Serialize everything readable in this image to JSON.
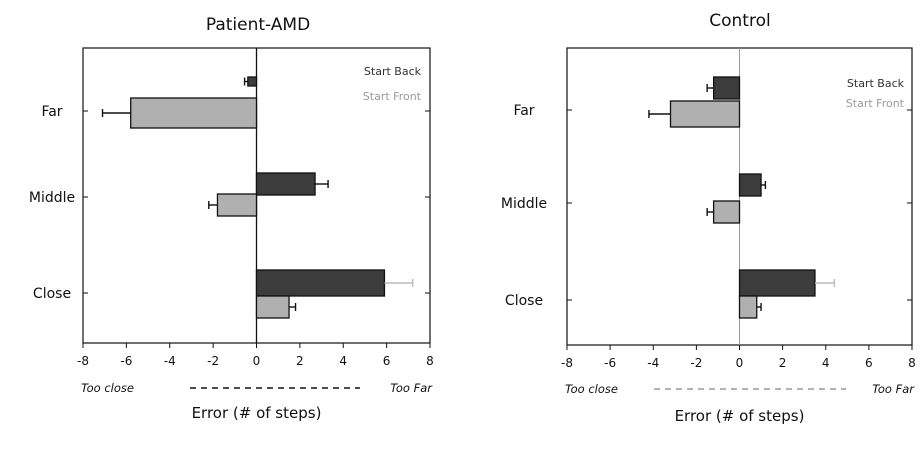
{
  "chart_data": [
    {
      "type": "bar",
      "orientation": "horizontal",
      "title": "Patient-AMD",
      "xlabel": "Error (# of steps)",
      "categories": [
        "Far",
        "Middle",
        "Close"
      ],
      "xlim": [
        -8,
        8
      ],
      "xticks": [
        "-8",
        "-6",
        "-4",
        "-2",
        "0",
        "2",
        "4",
        "6",
        "8"
      ],
      "axis_annotation": {
        "left": "Too close",
        "right": "Too Far"
      },
      "series": [
        {
          "name": "Start Back",
          "color": "#3c3c3c",
          "values": [
            -0.4,
            2.7,
            5.9
          ],
          "errors": [
            0.15,
            0.6,
            1.3
          ],
          "error_color": [
            "#111111",
            "#111111",
            "#bbbbbb"
          ]
        },
        {
          "name": "Start Front",
          "color": "#b0b0b0",
          "values": [
            -5.8,
            -1.8,
            1.5
          ],
          "errors": [
            1.3,
            0.4,
            0.3
          ],
          "error_color": [
            "#111111",
            "#111111",
            "#111111"
          ]
        }
      ],
      "legend": {
        "position": "top-right",
        "items": [
          "Start Back",
          "Start Front"
        ],
        "colors": [
          "#333333",
          "#9a9a9a"
        ]
      }
    },
    {
      "type": "bar",
      "orientation": "horizontal",
      "title": "Control",
      "xlabel": "Error (# of steps)",
      "categories": [
        "Far",
        "Middle",
        "Close"
      ],
      "xlim": [
        -8,
        8
      ],
      "xticks": [
        "-8",
        "-6",
        "-4",
        "-2",
        "0",
        "2",
        "4",
        "6",
        "8"
      ],
      "axis_annotation": {
        "left": "Too close",
        "right": "Too Far"
      },
      "series": [
        {
          "name": "Start Back",
          "color": "#3c3c3c",
          "values": [
            -1.2,
            1.0,
            3.5
          ],
          "errors": [
            0.3,
            0.2,
            0.9
          ],
          "error_color": [
            "#111111",
            "#111111",
            "#bbbbbb"
          ]
        },
        {
          "name": "Start Front",
          "color": "#b0b0b0",
          "values": [
            -3.2,
            -1.2,
            0.8
          ],
          "errors": [
            1.0,
            0.3,
            0.2
          ],
          "error_color": [
            "#111111",
            "#111111",
            "#111111"
          ]
        }
      ],
      "legend": {
        "position": "top-right",
        "items": [
          "Start Back",
          "Start Front"
        ],
        "colors": [
          "#333333",
          "#9a9a9a"
        ]
      }
    }
  ]
}
